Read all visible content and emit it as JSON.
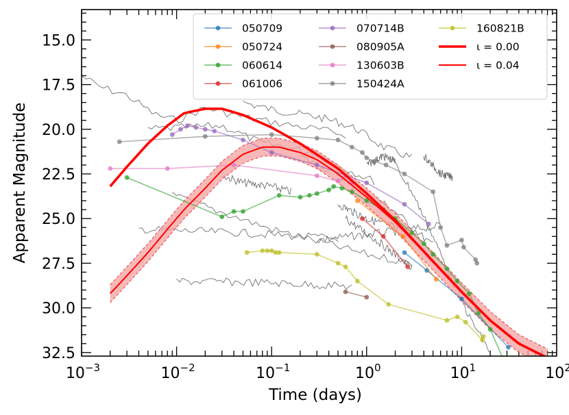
{
  "chart_data": {
    "type": "line",
    "xlabel": "Time (days)",
    "ylabel": "Apparent Magnitude",
    "xscale": "log",
    "xlim": [
      0.001,
      100
    ],
    "ylim": [
      32.7,
      13.3
    ],
    "y_inverted": true,
    "x_ticks": [
      {
        "value": 0.001,
        "base": "10",
        "exp": "−3"
      },
      {
        "value": 0.01,
        "base": "10",
        "exp": "−2"
      },
      {
        "value": 0.1,
        "base": "10",
        "exp": "−1"
      },
      {
        "value": 1,
        "base": "10",
        "exp": "0"
      },
      {
        "value": 10,
        "base": "10",
        "exp": "1"
      },
      {
        "value": 100,
        "base": "10",
        "exp": "2"
      }
    ],
    "y_ticks": [
      "15.0",
      "17.5",
      "20.0",
      "22.5",
      "25.0",
      "27.5",
      "30.0",
      "32.5"
    ],
    "legend_position": "top-right",
    "series": [
      {
        "name": "050709",
        "color": "#1f77b4",
        "points": [
          [
            2.5,
            26.9
          ],
          [
            4.3,
            27.9
          ],
          [
            10,
            29.5
          ],
          [
            31,
            32.2
          ]
        ]
      },
      {
        "name": "050724",
        "color": "#ff7f0e",
        "points": [
          [
            0.8,
            24.0
          ],
          [
            2.4,
            26.0
          ],
          [
            5.4,
            28.4
          ]
        ]
      },
      {
        "name": "060614",
        "color": "#2ca02c",
        "points": [
          [
            0.003,
            22.7
          ],
          [
            0.03,
            24.9
          ],
          [
            0.04,
            24.6
          ],
          [
            0.05,
            24.6
          ],
          [
            0.12,
            23.7
          ],
          [
            0.2,
            23.8
          ],
          [
            0.25,
            23.7
          ],
          [
            0.3,
            23.6
          ],
          [
            0.4,
            23.4
          ],
          [
            0.45,
            23.2
          ],
          [
            0.55,
            23.3
          ],
          [
            0.7,
            23.5
          ],
          [
            1.0,
            24.0
          ],
          [
            1.5,
            24.5
          ],
          [
            2.0,
            25.0
          ],
          [
            3.0,
            25.8
          ],
          [
            4.0,
            26.4
          ],
          [
            5.0,
            27.0
          ],
          [
            7.0,
            27.8
          ],
          [
            9.0,
            28.5
          ],
          [
            12.0,
            29.2
          ],
          [
            15.0,
            30.3
          ],
          [
            20.0,
            31.2
          ],
          [
            27.0,
            32.8
          ],
          [
            35.0,
            32.8
          ]
        ]
      },
      {
        "name": "061006",
        "color": "#d62728",
        "points": [
          [
            0.9,
            25.0
          ],
          [
            1.5,
            26.0
          ],
          [
            2.7,
            27.7
          ]
        ]
      },
      {
        "name": "070714B",
        "color": "#9467bd",
        "points": [
          [
            0.009,
            20.3
          ],
          [
            0.011,
            20.0
          ],
          [
            0.013,
            19.8
          ],
          [
            0.016,
            19.9
          ],
          [
            0.02,
            20.0
          ],
          [
            0.025,
            20.1
          ],
          [
            0.05,
            20.6
          ],
          [
            0.1,
            21.3
          ],
          [
            0.3,
            22.0
          ],
          [
            1.0,
            23.0
          ],
          [
            2.5,
            24.2
          ],
          [
            4.5,
            25.3
          ]
        ]
      },
      {
        "name": "080905A",
        "color": "#8c564b",
        "points": [
          [
            0.6,
            29.1
          ],
          [
            1.0,
            29.4
          ]
        ]
      },
      {
        "name": "130603B",
        "color": "#e377c2",
        "points": [
          [
            0.002,
            22.2
          ],
          [
            0.008,
            22.2
          ],
          [
            0.04,
            22.0
          ],
          [
            0.3,
            22.6
          ],
          [
            0.5,
            22.9
          ],
          [
            0.6,
            22.6
          ],
          [
            0.7,
            23.0
          ]
        ]
      },
      {
        "name": "150424A",
        "color": "#7f7f7f",
        "points": [
          [
            0.0025,
            20.7
          ],
          [
            0.02,
            20.4
          ],
          [
            0.1,
            20.3
          ],
          [
            0.3,
            20.5
          ],
          [
            0.5,
            20.6
          ],
          [
            0.7,
            21.0
          ],
          [
            0.9,
            21.3
          ],
          [
            1.0,
            21.6
          ],
          [
            1.2,
            21.8
          ],
          [
            1.6,
            22.0
          ],
          [
            2.5,
            22.5
          ],
          [
            5.0,
            23.5
          ],
          [
            6.0,
            25.5
          ],
          [
            7.0,
            26.5
          ],
          [
            10.0,
            26.2
          ],
          [
            10.5,
            26.6
          ],
          [
            14.0,
            27.3
          ],
          [
            14.5,
            27.5
          ]
        ]
      },
      {
        "name": "160821B",
        "color": "#bcbd22",
        "points": [
          [
            0.055,
            26.9
          ],
          [
            0.08,
            26.8
          ],
          [
            0.09,
            26.8
          ],
          [
            0.1,
            26.8
          ],
          [
            0.11,
            26.9
          ],
          [
            0.12,
            26.9
          ],
          [
            0.3,
            27.0
          ],
          [
            0.5,
            27.5
          ],
          [
            0.6,
            27.7
          ],
          [
            0.8,
            28.5
          ],
          [
            1.7,
            29.8
          ],
          [
            7.0,
            30.7
          ],
          [
            9.0,
            30.5
          ],
          [
            11.0,
            30.8
          ],
          [
            16.5,
            31.8
          ],
          [
            17.0,
            31.6
          ]
        ]
      },
      {
        "name": "ι = 0.00",
        "color": "#ff0000",
        "model": "thick",
        "points": [
          [
            0.002,
            23.2
          ],
          [
            0.003,
            22.1
          ],
          [
            0.005,
            20.8
          ],
          [
            0.008,
            19.8
          ],
          [
            0.012,
            19.1
          ],
          [
            0.02,
            18.85
          ],
          [
            0.03,
            18.85
          ],
          [
            0.05,
            19.2
          ],
          [
            0.1,
            19.9
          ],
          [
            0.2,
            20.8
          ],
          [
            0.5,
            22.2
          ],
          [
            1,
            23.6
          ],
          [
            2,
            25.1
          ],
          [
            5,
            27.4
          ],
          [
            10,
            29.1
          ],
          [
            20,
            30.7
          ],
          [
            40,
            32.0
          ],
          [
            80,
            32.8
          ]
        ]
      },
      {
        "name": "ι = 0.04",
        "color": "#ff0000",
        "model": "thin",
        "points": [
          [
            0.002,
            29.2
          ],
          [
            0.003,
            28.2
          ],
          [
            0.005,
            26.9
          ],
          [
            0.008,
            25.6
          ],
          [
            0.012,
            24.5
          ],
          [
            0.02,
            23.3
          ],
          [
            0.03,
            22.3
          ],
          [
            0.05,
            21.4
          ],
          [
            0.08,
            21.0
          ],
          [
            0.12,
            21.0
          ],
          [
            0.2,
            21.3
          ],
          [
            0.3,
            21.7
          ],
          [
            0.5,
            22.5
          ],
          [
            1,
            23.8
          ],
          [
            2,
            25.2
          ],
          [
            5,
            27.4
          ],
          [
            10,
            29.1
          ],
          [
            20,
            30.7
          ],
          [
            40,
            32.0
          ],
          [
            80,
            32.8
          ]
        ]
      }
    ],
    "band": {
      "color": "#f4a0a0",
      "halfwidth_mag": 0.5
    }
  }
}
